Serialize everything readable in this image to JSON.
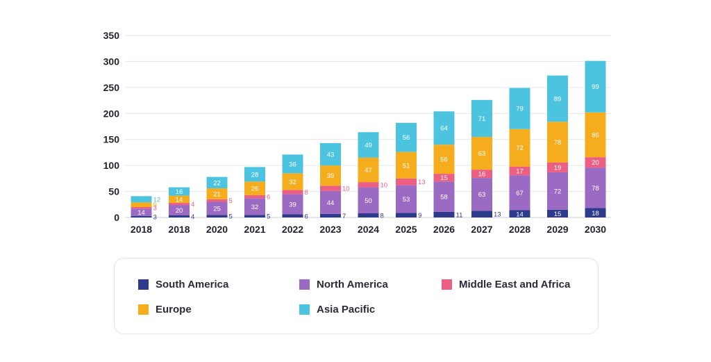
{
  "chart_data": {
    "type": "bar",
    "stacked": true,
    "categories": [
      "2018",
      "2018",
      "2020",
      "2021",
      "2022",
      "2023",
      "2024",
      "2025",
      "2026",
      "2027",
      "2028",
      "2029",
      "2030"
    ],
    "series": [
      {
        "name": "South America",
        "color": "#2e3a8c",
        "values": [
          3,
          4,
          5,
          5,
          6,
          7,
          8,
          9,
          11,
          13,
          14,
          15,
          18
        ]
      },
      {
        "name": "North America",
        "color": "#9b6bc4",
        "values": [
          14,
          20,
          25,
          32,
          39,
          44,
          50,
          53,
          58,
          63,
          67,
          72,
          78
        ]
      },
      {
        "name": "Middle East and Africa",
        "color": "#ec5f82",
        "values": [
          3,
          4,
          5,
          6,
          8,
          10,
          10,
          13,
          15,
          16,
          17,
          19,
          20
        ]
      },
      {
        "name": "Europe",
        "color": "#f5ad1d",
        "values": [
          9,
          14,
          21,
          26,
          32,
          39,
          47,
          51,
          56,
          63,
          72,
          78,
          86
        ]
      },
      {
        "name": "Asia Pacific",
        "color": "#4cc4e0",
        "values": [
          12,
          16,
          22,
          28,
          36,
          43,
          49,
          56,
          64,
          71,
          79,
          89,
          99
        ]
      }
    ],
    "title": "",
    "xlabel": "",
    "ylabel": "",
    "ylim": [
      0,
      350
    ],
    "yticks": [
      0,
      50,
      100,
      150,
      200,
      250,
      300,
      350
    ],
    "grid": true,
    "legend_position": "bottom"
  }
}
